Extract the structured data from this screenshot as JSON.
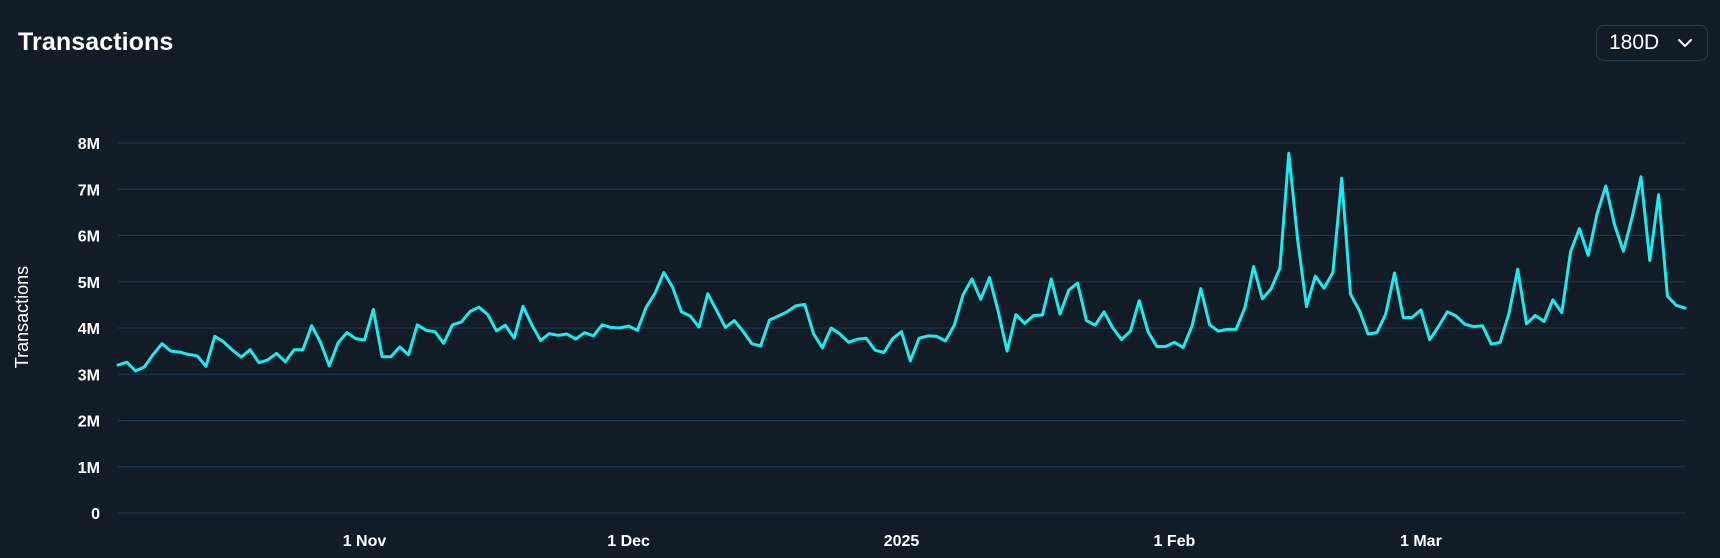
{
  "header": {
    "title": "Transactions",
    "range_value": "180D",
    "range_icon": "chevron-down-icon"
  },
  "colors": {
    "background": "#111c27",
    "grid": "#1d3a52",
    "line": "#19ebf0",
    "text": "#ffffff"
  },
  "chart_data": {
    "type": "line",
    "title": "Transactions",
    "xlabel": "",
    "ylabel": "Transactions",
    "ylim": [
      0,
      8000000
    ],
    "yticks": [
      {
        "value": 0,
        "label": "0"
      },
      {
        "value": 1000000,
        "label": "1M"
      },
      {
        "value": 2000000,
        "label": "2M"
      },
      {
        "value": 3000000,
        "label": "3M"
      },
      {
        "value": 4000000,
        "label": "4M"
      },
      {
        "value": 5000000,
        "label": "5M"
      },
      {
        "value": 6000000,
        "label": "6M"
      },
      {
        "value": 7000000,
        "label": "7M"
      },
      {
        "value": 8000000,
        "label": "8M"
      }
    ],
    "xlim": [
      "2024-10-04",
      "2025-03-31"
    ],
    "xticks": [
      {
        "date": "2024-11-01",
        "label": "1 Nov"
      },
      {
        "date": "2024-12-01",
        "label": "1 Dec"
      },
      {
        "date": "2025-01-01",
        "label": "2025"
      },
      {
        "date": "2025-02-01",
        "label": "1 Feb"
      },
      {
        "date": "2025-03-01",
        "label": "1 Mar"
      }
    ],
    "grid": true,
    "legend": "none",
    "series": [
      {
        "x": [
          "2024-10-04",
          "2024-10-05",
          "2024-10-06",
          "2024-10-07",
          "2024-10-08",
          "2024-10-09",
          "2024-10-10",
          "2024-10-11",
          "2024-10-12",
          "2024-10-13",
          "2024-10-14",
          "2024-10-15",
          "2024-10-16",
          "2024-10-17",
          "2024-10-18",
          "2024-10-19",
          "2024-10-20",
          "2024-10-21",
          "2024-10-22",
          "2024-10-23",
          "2024-10-24",
          "2024-10-25",
          "2024-10-26",
          "2024-10-27",
          "2024-10-28",
          "2024-10-29",
          "2024-10-30",
          "2024-10-31",
          "2024-11-01",
          "2024-11-02",
          "2024-11-03",
          "2024-11-04",
          "2024-11-05",
          "2024-11-06",
          "2024-11-07",
          "2024-11-08",
          "2024-11-09",
          "2024-11-10",
          "2024-11-11",
          "2024-11-12",
          "2024-11-13",
          "2024-11-14",
          "2024-11-15",
          "2024-11-16",
          "2024-11-17",
          "2024-11-18",
          "2024-11-19",
          "2024-11-20",
          "2024-11-21",
          "2024-11-22",
          "2024-11-23",
          "2024-11-24",
          "2024-11-25",
          "2024-11-26",
          "2024-11-27",
          "2024-11-28",
          "2024-11-29",
          "2024-11-30",
          "2024-12-01",
          "2024-12-02",
          "2024-12-03",
          "2024-12-04",
          "2024-12-05",
          "2024-12-06",
          "2024-12-07",
          "2024-12-08",
          "2024-12-09",
          "2024-12-10",
          "2024-12-11",
          "2024-12-12",
          "2024-12-13",
          "2024-12-14",
          "2024-12-15",
          "2024-12-16",
          "2024-12-17",
          "2024-12-18",
          "2024-12-19",
          "2024-12-20",
          "2024-12-21",
          "2024-12-22",
          "2024-12-23",
          "2024-12-24",
          "2024-12-25",
          "2024-12-26",
          "2024-12-27",
          "2024-12-28",
          "2024-12-29",
          "2024-12-30",
          "2024-12-31",
          "2025-01-01",
          "2025-01-02",
          "2025-01-03",
          "2025-01-04",
          "2025-01-05",
          "2025-01-06",
          "2025-01-07",
          "2025-01-08",
          "2025-01-09",
          "2025-01-10",
          "2025-01-11",
          "2025-01-12",
          "2025-01-13",
          "2025-01-14",
          "2025-01-15",
          "2025-01-16",
          "2025-01-17",
          "2025-01-18",
          "2025-01-19",
          "2025-01-20",
          "2025-01-21",
          "2025-01-22",
          "2025-01-23",
          "2025-01-24",
          "2025-01-25",
          "2025-01-26",
          "2025-01-27",
          "2025-01-28",
          "2025-01-29",
          "2025-01-30",
          "2025-01-31",
          "2025-02-01",
          "2025-02-02",
          "2025-02-03",
          "2025-02-04",
          "2025-02-05",
          "2025-02-06",
          "2025-02-07",
          "2025-02-08",
          "2025-02-09",
          "2025-02-10",
          "2025-02-11",
          "2025-02-12",
          "2025-02-13",
          "2025-02-14",
          "2025-02-15",
          "2025-02-16",
          "2025-02-17",
          "2025-02-18",
          "2025-02-19",
          "2025-02-20",
          "2025-02-21",
          "2025-02-22",
          "2025-02-23",
          "2025-02-24",
          "2025-02-25",
          "2025-02-26",
          "2025-02-27",
          "2025-02-28",
          "2025-03-01",
          "2025-03-02",
          "2025-03-03",
          "2025-03-04",
          "2025-03-05",
          "2025-03-06",
          "2025-03-07",
          "2025-03-08",
          "2025-03-09",
          "2025-03-10",
          "2025-03-11",
          "2025-03-12",
          "2025-03-13",
          "2025-03-14",
          "2025-03-15",
          "2025-03-16",
          "2025-03-17",
          "2025-03-18",
          "2025-03-19",
          "2025-03-20",
          "2025-03-21",
          "2025-03-22",
          "2025-03-23",
          "2025-03-24",
          "2025-03-25",
          "2025-03-26",
          "2025-03-27",
          "2025-03-28",
          "2025-03-29",
          "2025-03-30",
          "2025-03-31"
        ],
        "values": [
          3200000,
          3260000,
          3070000,
          3160000,
          3430000,
          3660000,
          3500000,
          3480000,
          3430000,
          3400000,
          3170000,
          3820000,
          3700000,
          3520000,
          3370000,
          3530000,
          3250000,
          3310000,
          3450000,
          3270000,
          3530000,
          3530000,
          4050000,
          3690000,
          3180000,
          3680000,
          3900000,
          3770000,
          3740000,
          4400000,
          3380000,
          3380000,
          3590000,
          3420000,
          4070000,
          3950000,
          3920000,
          3670000,
          4070000,
          4130000,
          4360000,
          4450000,
          4290000,
          3940000,
          4060000,
          3780000,
          4470000,
          4070000,
          3730000,
          3880000,
          3840000,
          3870000,
          3760000,
          3900000,
          3830000,
          4070000,
          4010000,
          4000000,
          4040000,
          3950000,
          4450000,
          4750000,
          5200000,
          4880000,
          4350000,
          4260000,
          4020000,
          4740000,
          4380000,
          4010000,
          4160000,
          3930000,
          3660000,
          3610000,
          4170000,
          4260000,
          4350000,
          4480000,
          4510000,
          3880000,
          3570000,
          4000000,
          3870000,
          3690000,
          3760000,
          3780000,
          3520000,
          3470000,
          3770000,
          3920000,
          3290000,
          3780000,
          3830000,
          3820000,
          3720000,
          4060000,
          4720000,
          5060000,
          4620000,
          5090000,
          4350000,
          3500000,
          4290000,
          4100000,
          4270000,
          4280000,
          5060000,
          4300000,
          4820000,
          4970000,
          4160000,
          4060000,
          4350000,
          4000000,
          3750000,
          3930000,
          4590000,
          3920000,
          3600000,
          3600000,
          3690000,
          3580000,
          4040000,
          4850000,
          4070000,
          3930000,
          3970000,
          3970000,
          4430000,
          5330000,
          4630000,
          4850000,
          5300000,
          7780000,
          5900000,
          4460000,
          5120000,
          4860000,
          5200000,
          7240000,
          4730000,
          4380000,
          3870000,
          3900000,
          4300000,
          5190000,
          4220000,
          4230000,
          4390000,
          3750000,
          4030000,
          4350000,
          4260000,
          4080000,
          4030000,
          4050000,
          3650000,
          3690000,
          4310000,
          5270000,
          4090000,
          4270000,
          4140000,
          4610000,
          4330000,
          5650000,
          6150000,
          5570000,
          6460000,
          7070000,
          6230000,
          5660000,
          6400000,
          7270000,
          5460000,
          6880000,
          4690000,
          4490000,
          4430000
        ]
      }
    ]
  }
}
